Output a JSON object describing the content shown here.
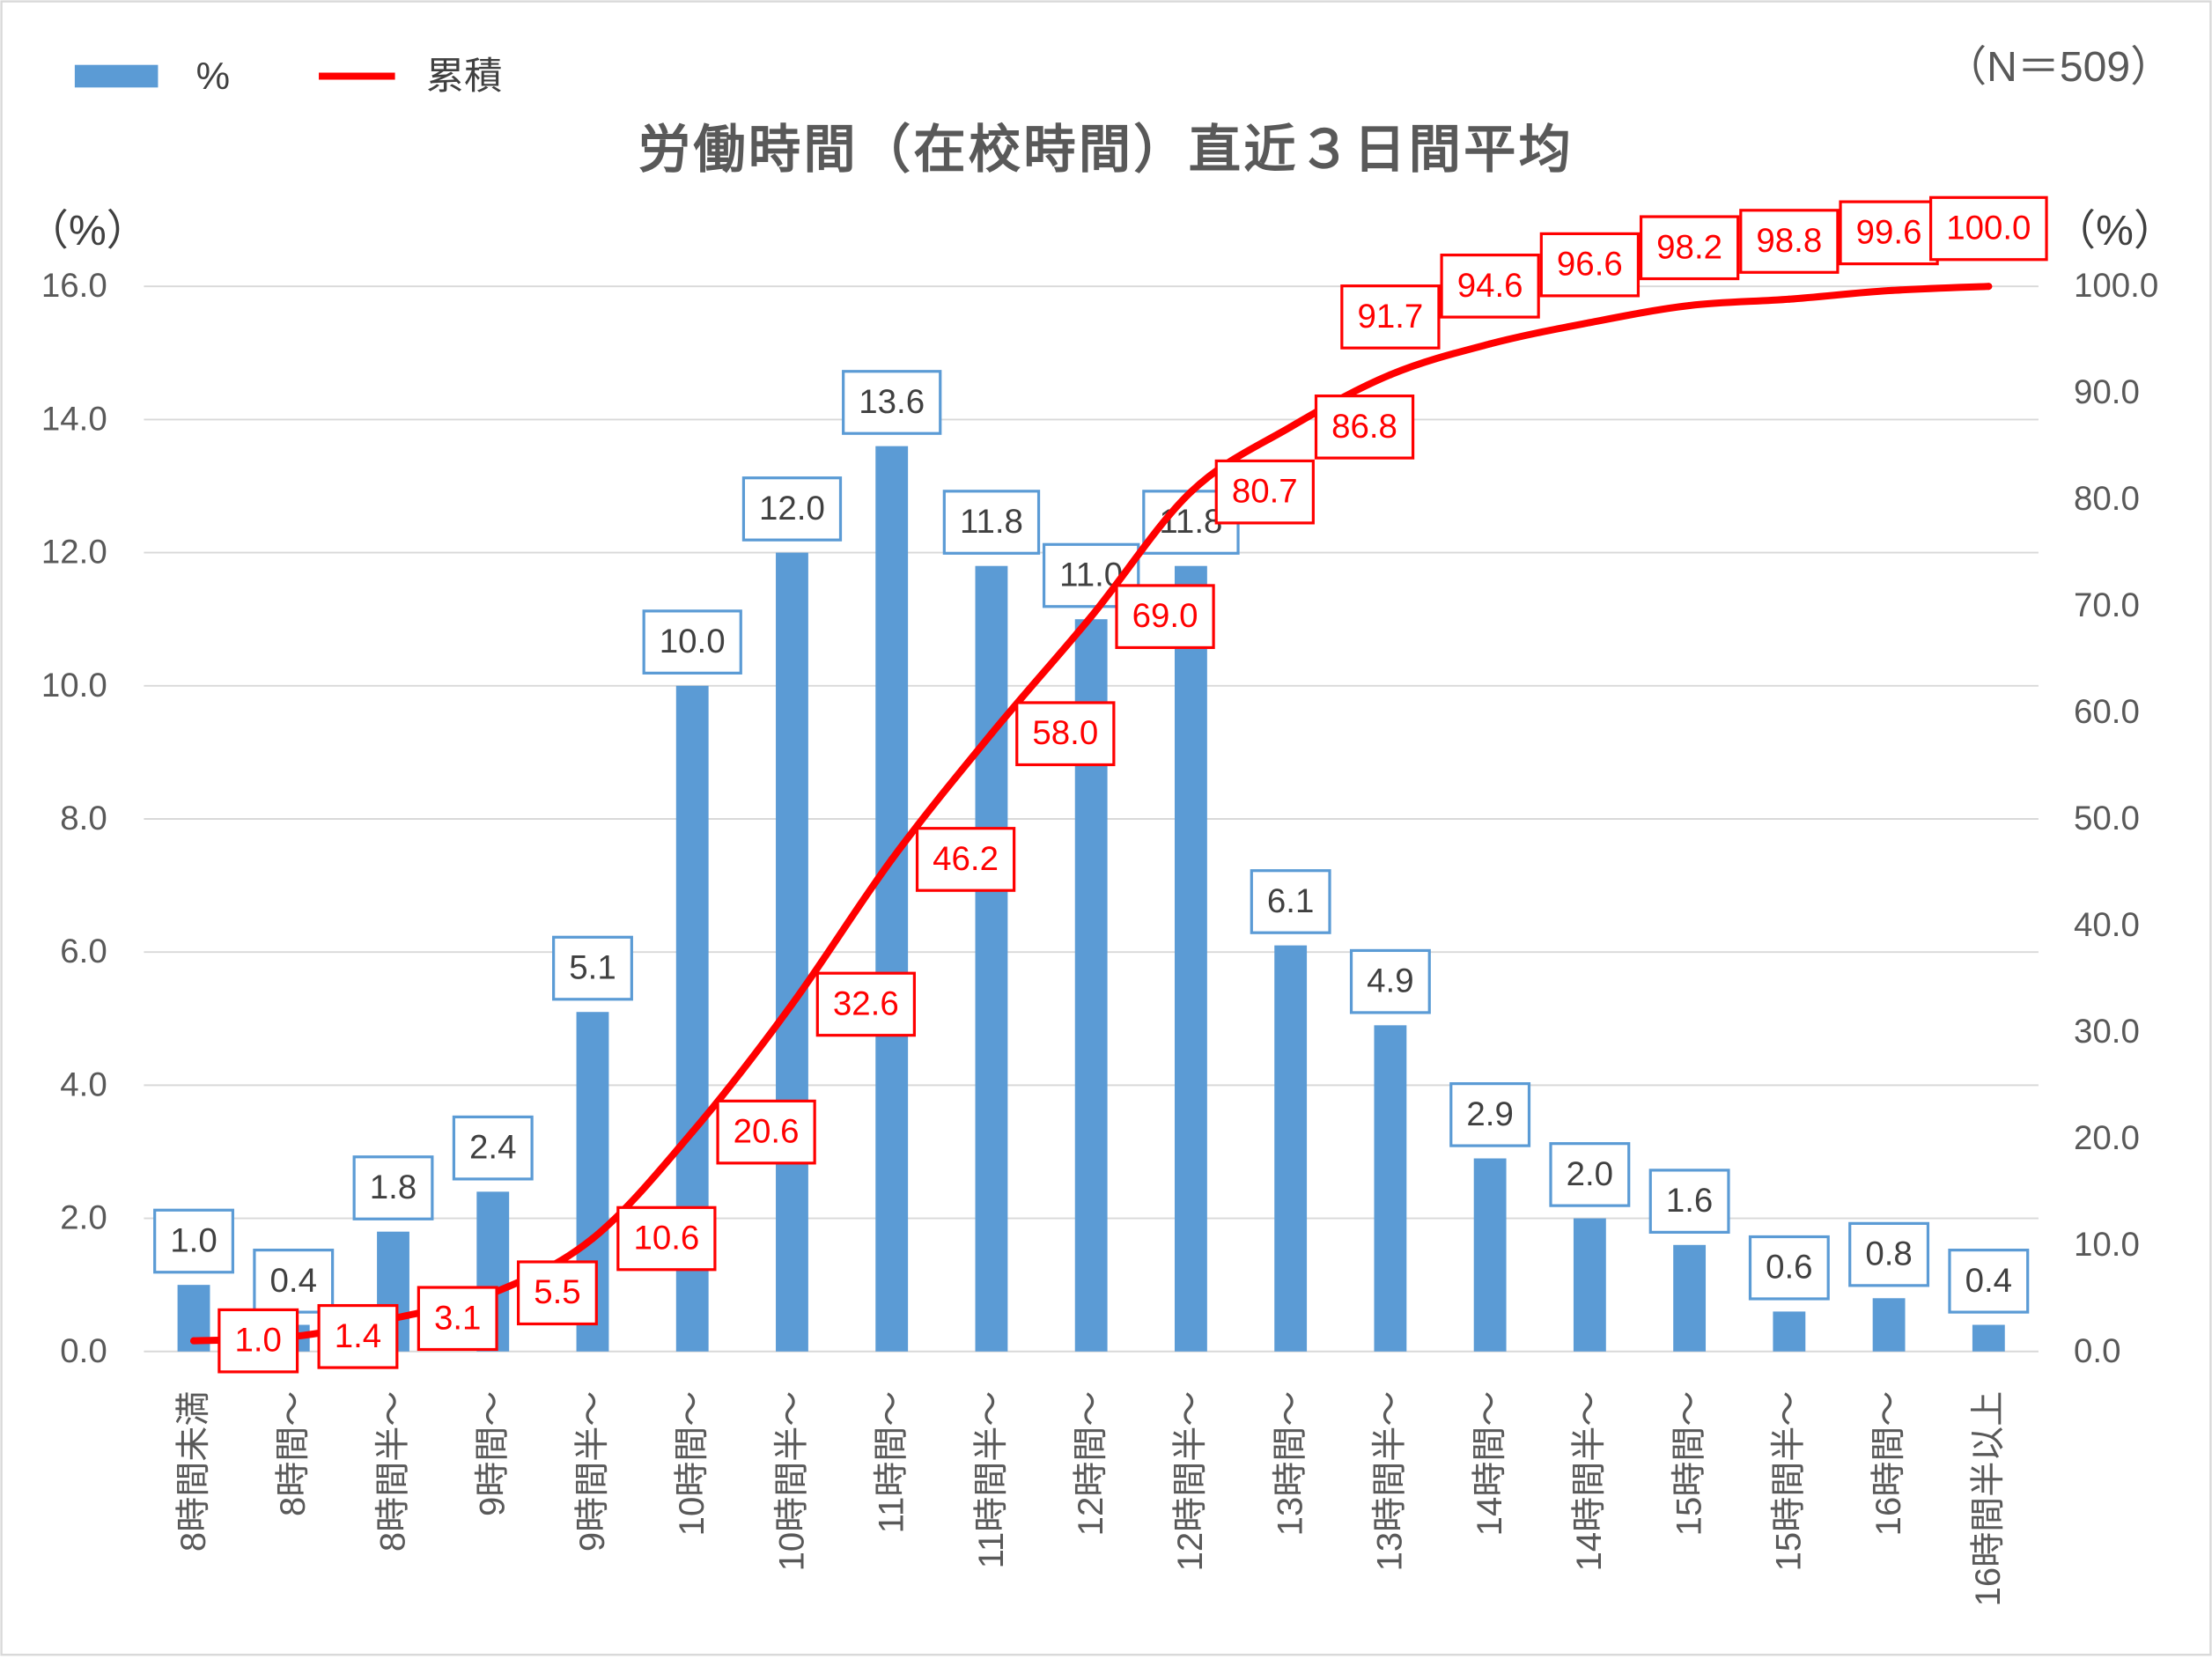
{
  "chart_data": {
    "type": "bar",
    "title": "労働時間（在校時間）直近３日間平均",
    "annotation": "（N＝509）",
    "categories": [
      "8時間未満",
      "8時間～",
      "8時間半～",
      "9時間～",
      "9時間半～",
      "10時間～",
      "10時間半～",
      "11時間～",
      "11時間半～",
      "12時間～",
      "12時間半～",
      "13時間～",
      "13時間半～",
      "14時間～",
      "14時間半～",
      "15時間～",
      "15時間半～",
      "16時間～",
      "16時間半以上"
    ],
    "series": [
      {
        "name": "%",
        "type": "bar",
        "secondary_y": false,
        "values": [
          1.0,
          0.4,
          1.8,
          2.4,
          5.1,
          10.0,
          12.0,
          13.6,
          11.8,
          11.0,
          11.8,
          6.1,
          4.9,
          2.9,
          2.0,
          1.6,
          0.6,
          0.8,
          0.4
        ],
        "data_labels": [
          "1.0",
          "0.4",
          "1.8",
          "2.4",
          "5.1",
          "10.0",
          "12.0",
          "13.6",
          "11.8",
          "11.0",
          "11.8",
          "6.1",
          "4.9",
          "2.9",
          "2.0",
          "1.6",
          "0.6",
          "0.8",
          "0.4"
        ]
      },
      {
        "name": "累積",
        "type": "line",
        "secondary_y": true,
        "smooth": true,
        "values": [
          1.0,
          1.4,
          3.1,
          5.5,
          10.6,
          20.6,
          32.6,
          46.2,
          58.0,
          69.0,
          80.7,
          86.8,
          91.7,
          94.6,
          96.6,
          98.2,
          98.8,
          99.6,
          100.0
        ],
        "data_labels": [
          "1.0",
          "1.4",
          "3.1",
          "5.5",
          "10.6",
          "20.6",
          "32.6",
          "46.2",
          "58.0",
          "69.0",
          "80.7",
          "86.8",
          "91.7",
          "94.6",
          "96.6",
          "98.2",
          "98.8",
          "99.6",
          "100.0"
        ]
      }
    ],
    "ylabel": "（%）",
    "y2label": "（%）",
    "ylim": [
      0,
      16
    ],
    "y2lim": [
      0,
      100
    ],
    "yticks": [
      "0.0",
      "2.0",
      "4.0",
      "6.0",
      "8.0",
      "10.0",
      "12.0",
      "14.0",
      "16.0"
    ],
    "y2ticks": [
      "0.0",
      "10.0",
      "20.0",
      "30.0",
      "40.0",
      "50.0",
      "60.0",
      "70.0",
      "80.0",
      "90.0",
      "100.0"
    ],
    "grid": true,
    "legend_position": "top-left"
  },
  "colors": {
    "bar": "#5b9bd5",
    "line": "#ff0000",
    "grid": "#d9d9d9"
  }
}
